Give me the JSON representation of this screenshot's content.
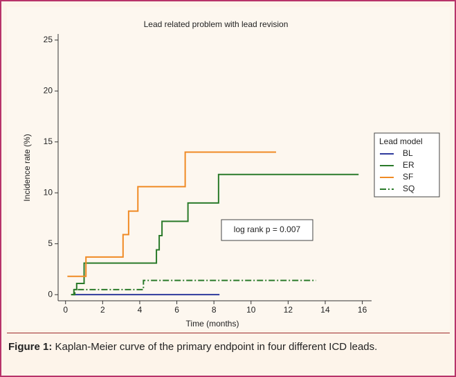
{
  "chart_data": {
    "type": "step",
    "title": "Lead related problem with lead revision",
    "xlabel": "Time (months)",
    "ylabel": "Incidence rate (%)",
    "xlim": [
      -0.4,
      16.5
    ],
    "ylim": [
      -0.6,
      25.6
    ],
    "xticks": [
      0,
      2,
      4,
      6,
      8,
      10,
      12,
      14,
      16
    ],
    "yticks": [
      0,
      5,
      10,
      15,
      20,
      25
    ],
    "legend": "right",
    "legend_title": "Lead model",
    "annotation": "log rank p = 0.007",
    "series": [
      {
        "name": "BL",
        "color": "#2e3a9c",
        "line_style": "solid",
        "x": [
          0.4,
          8.3
        ],
        "values": [
          0,
          0
        ]
      },
      {
        "name": "ER",
        "color": "#2a7a2a",
        "line_style": "solid",
        "x": [
          0.3,
          0.45,
          0.6,
          1.0,
          4.9,
          5.05,
          5.2,
          6.6,
          8.25,
          15.8
        ],
        "values": [
          0,
          0.5,
          1.1,
          3.1,
          4.4,
          5.8,
          7.2,
          9.0,
          11.8,
          11.8
        ]
      },
      {
        "name": "SF",
        "color": "#f08a24",
        "line_style": "solid",
        "x": [
          0.1,
          1.1,
          3.1,
          3.4,
          3.9,
          6.45,
          11.35
        ],
        "values": [
          1.8,
          3.7,
          5.9,
          8.2,
          10.6,
          14.0,
          14.0
        ]
      },
      {
        "name": "SQ",
        "color": "#2a7a2a",
        "line_style": "dashdot",
        "x": [
          0.3,
          0.5,
          4.2,
          13.5
        ],
        "values": [
          0,
          0.5,
          1.4,
          1.4
        ]
      }
    ]
  },
  "caption": {
    "label": "Figure 1:",
    "text": "Kaplan-Meier curve of the primary endpoint in four different ICD leads."
  }
}
